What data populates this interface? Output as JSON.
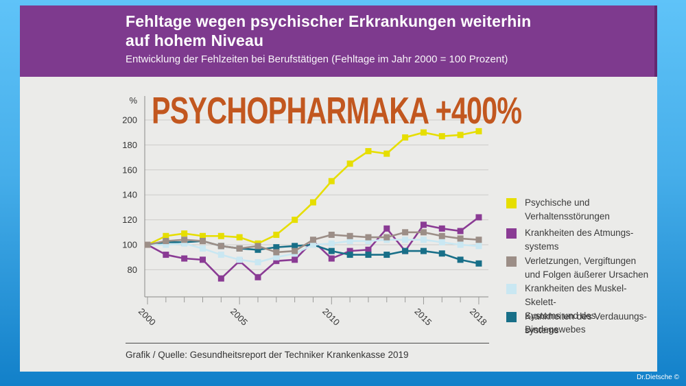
{
  "header": {
    "title_line1": "Fehltage wegen psychischer Erkrankungen weiterhin",
    "title_line2": "auf hohem Niveau",
    "subtitle": "Entwicklung der Fehlzeiten bei Berufstätigen (Fehltage im Jahr 2000 = 100 Prozent)",
    "background_color": "#7e3a8e"
  },
  "annotation": {
    "text": "PSYCHOPHARMAKA +400%",
    "color": "#c2571f"
  },
  "source": {
    "text": "Grafik / Quelle: Gesundheitsreport der Techniker Krankenkasse 2019"
  },
  "watermark": "Dr.Dietsche ©",
  "chart_data": {
    "type": "line",
    "ylabel": "%",
    "ylim": [
      80,
      200
    ],
    "yticks": [
      200,
      180,
      160,
      140,
      120,
      100,
      80
    ],
    "x": [
      2000,
      2001,
      2002,
      2003,
      2004,
      2005,
      2006,
      2007,
      2008,
      2009,
      2010,
      2011,
      2012,
      2013,
      2014,
      2015,
      2016,
      2017,
      2018
    ],
    "x_labeled_ticks": [
      2000,
      2005,
      2010,
      2015,
      2018
    ],
    "grid": true,
    "legend_position": "right",
    "draw_order": [
      0,
      1,
      4,
      3,
      2
    ],
    "series": [
      {
        "name": "Psychische und Verhaltensstörungen",
        "legend": [
          "Psychische und",
          "Verhaltensstörungen"
        ],
        "color": "#e6de00",
        "values": [
          100,
          107,
          109,
          107,
          107,
          106,
          101,
          108,
          120,
          134,
          151,
          165,
          175,
          173,
          186,
          190,
          187,
          188,
          191
        ]
      },
      {
        "name": "Krankheiten des Atmungssystems",
        "legend": [
          "Krankheiten des Atmungs-",
          "systems"
        ],
        "color": "#8a3b94",
        "values": [
          100,
          92,
          89,
          88,
          73,
          87,
          74,
          87,
          88,
          103,
          89,
          95,
          96,
          113,
          95,
          116,
          113,
          111,
          122
        ]
      },
      {
        "name": "Verletzungen, Vergiftungen und Folgen äußerer Ursachen",
        "legend": [
          "Verletzungen, Vergiftungen",
          "und Folgen äußerer Ursachen"
        ],
        "color": "#9c8e87",
        "values": [
          100,
          103,
          104,
          103,
          99,
          97,
          99,
          94,
          95,
          104,
          108,
          107,
          106,
          106,
          110,
          110,
          107,
          105,
          104
        ]
      },
      {
        "name": "Krankheiten des Muskel-Skelett-Systems und des Bindegewebes",
        "legend": [
          "Krankheiten des Muskel-Skelett-",
          "Systems und des Bindegewebes"
        ],
        "color": "#c9e7f2",
        "values": [
          100,
          100,
          101,
          97,
          92,
          88,
          86,
          90,
          93,
          100,
          101,
          103,
          103,
          104,
          104,
          104,
          102,
          100,
          99
        ]
      },
      {
        "name": "Krankheiten des Verdauungssystems",
        "legend": [
          "Krankheiten des Verdauungs-",
          "systems"
        ],
        "color": "#186f88",
        "values": [
          100,
          102,
          102,
          103,
          99,
          97,
          96,
          98,
          99,
          100,
          95,
          92,
          92,
          92,
          95,
          95,
          93,
          88,
          85
        ]
      }
    ]
  }
}
